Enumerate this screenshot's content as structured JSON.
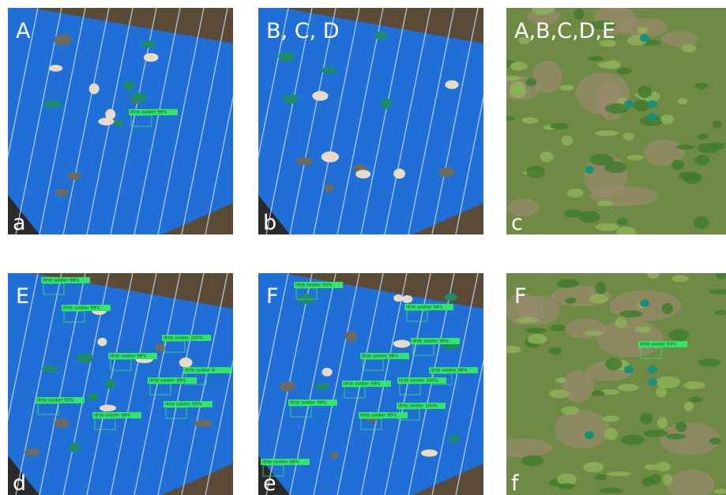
{
  "panels": [
    {
      "label": "A",
      "sublabel": "a",
      "detections": [
        "little soldier 98%"
      ]
    },
    {
      "label": "B, C, D",
      "sublabel": "b",
      "detections": []
    },
    {
      "label": "A,B,C,D,E",
      "sublabel": "c",
      "detections": []
    },
    {
      "label": "E",
      "sublabel": "d",
      "detections": [
        "little soldier 98%",
        "little soldier 99%",
        "little soldier 100%",
        "little soldier 98%",
        "little soldier 9",
        "little soldier 99%",
        "little soldier 99%",
        "little soldier 97%",
        "little soldier 98%"
      ]
    },
    {
      "label": "F",
      "sublabel": "e",
      "detections": [
        "little soldier 95%",
        "little soldier 98%",
        "little soldier 99%",
        "little soldier 98%",
        "little soldier 98%",
        "little soldier 99%",
        "little soldier 100%",
        "little soldier 98%",
        "little soldier 99%",
        "little soldier 100%",
        "little soldier 98%"
      ]
    },
    {
      "label": "F",
      "sublabel": "f",
      "detections": [
        "little soldier 93%"
      ]
    }
  ]
}
